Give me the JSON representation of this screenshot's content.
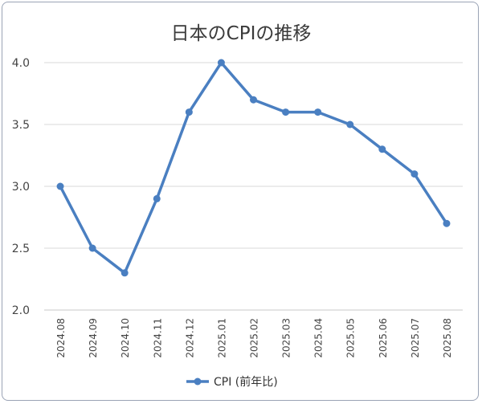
{
  "chart_data": {
    "type": "line",
    "title": "日本のCPIの推移",
    "categories": [
      "2024.08",
      "2024.09",
      "2024.10",
      "2024.11",
      "2024.12",
      "2025.01",
      "2025.02",
      "2025.03",
      "2025.04",
      "2025.05",
      "2025.06",
      "2025.07",
      "2025.08"
    ],
    "series": [
      {
        "name": "CPI (前年比)",
        "values": [
          3.0,
          2.5,
          2.3,
          2.9,
          3.6,
          4.0,
          3.7,
          3.6,
          3.6,
          3.5,
          3.3,
          3.1,
          2.7
        ],
        "color": "#4a7fc1"
      }
    ],
    "ylim": [
      2.0,
      4.0
    ],
    "yticks": [
      "2.0",
      "2.5",
      "3.0",
      "3.5",
      "4.0"
    ],
    "grid": true,
    "legend_position": "bottom"
  }
}
